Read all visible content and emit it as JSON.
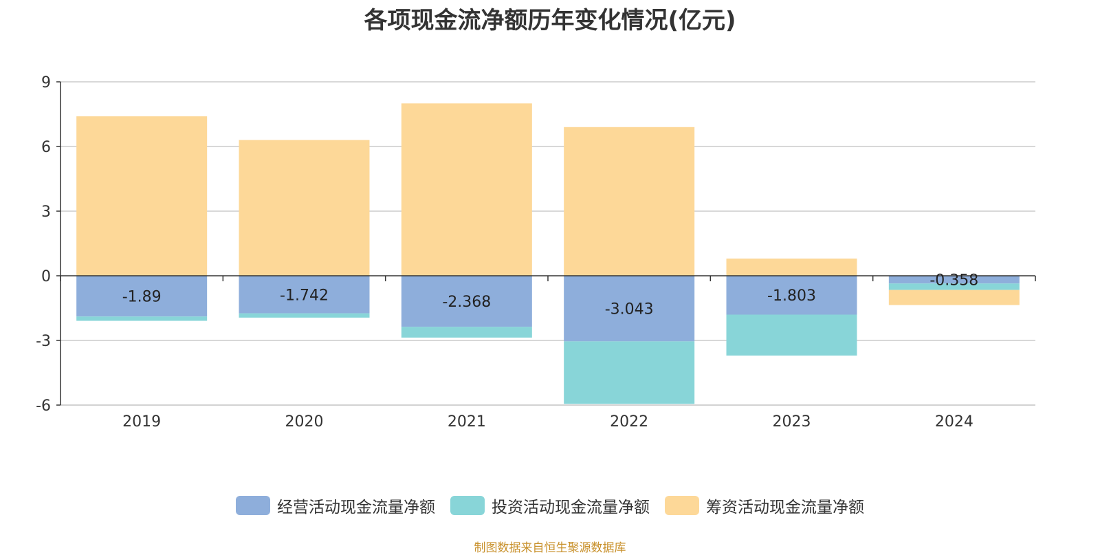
{
  "chart_data": {
    "type": "bar",
    "stacked": true,
    "title": "各项现金流净额历年变化情况(亿元)",
    "categories": [
      "2019",
      "2020",
      "2021",
      "2022",
      "2023",
      "2024"
    ],
    "ylim": [
      -6,
      9
    ],
    "yticks": [
      9,
      6,
      3,
      0,
      -3,
      -6
    ],
    "grid": true,
    "legend_position": "bottom",
    "series": [
      {
        "name": "经营活动现金流量净额",
        "color": "#8eaedb",
        "values": [
          -1.89,
          -1.742,
          -2.368,
          -3.043,
          -1.803,
          -0.358
        ],
        "labels": [
          "-1.89",
          "-1.742",
          "-2.368",
          "-3.043",
          "-1.803",
          "-0.358"
        ]
      },
      {
        "name": "投资活动现金流量净额",
        "color": "#88d5d8",
        "values": [
          -0.2,
          -0.2,
          -0.5,
          -2.9,
          -1.9,
          -0.3
        ]
      },
      {
        "name": "筹资活动现金流量净额",
        "color": "#fdd898",
        "values": [
          7.4,
          6.3,
          8.0,
          6.9,
          0.8,
          -0.7
        ]
      }
    ]
  },
  "source_note": "制图数据来自恒生聚源数据库"
}
